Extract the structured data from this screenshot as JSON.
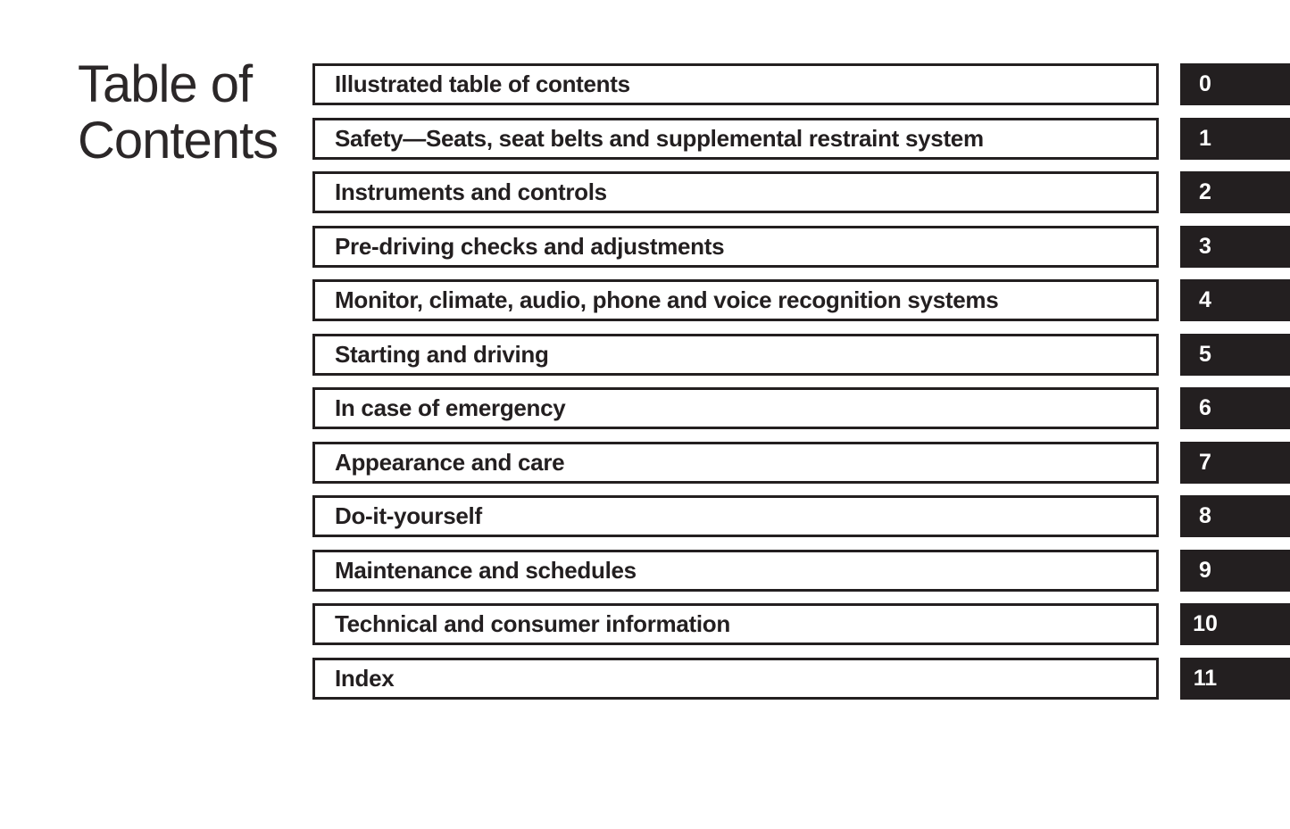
{
  "title": {
    "line1": "Table of",
    "line2": "Contents"
  },
  "sections": [
    {
      "label": "Illustrated table of contents",
      "tab": "0"
    },
    {
      "label": "Safety—Seats, seat belts and supplemental restraint system",
      "tab": "1"
    },
    {
      "label": "Instruments and controls",
      "tab": "2"
    },
    {
      "label": "Pre-driving checks and adjustments",
      "tab": "3"
    },
    {
      "label": "Monitor, climate, audio, phone and voice recognition systems",
      "tab": "4"
    },
    {
      "label": "Starting and driving",
      "tab": "5"
    },
    {
      "label": "In case of emergency",
      "tab": "6"
    },
    {
      "label": "Appearance and care",
      "tab": "7"
    },
    {
      "label": "Do-it-yourself",
      "tab": "8"
    },
    {
      "label": "Maintenance and schedules",
      "tab": "9"
    },
    {
      "label": "Technical and consumer information",
      "tab": "10"
    },
    {
      "label": "Index",
      "tab": "11"
    }
  ],
  "colors": {
    "ink": "#231f20",
    "tab_bg": "#231f20",
    "tab_text": "#ffffff",
    "page_bg": "#ffffff"
  }
}
